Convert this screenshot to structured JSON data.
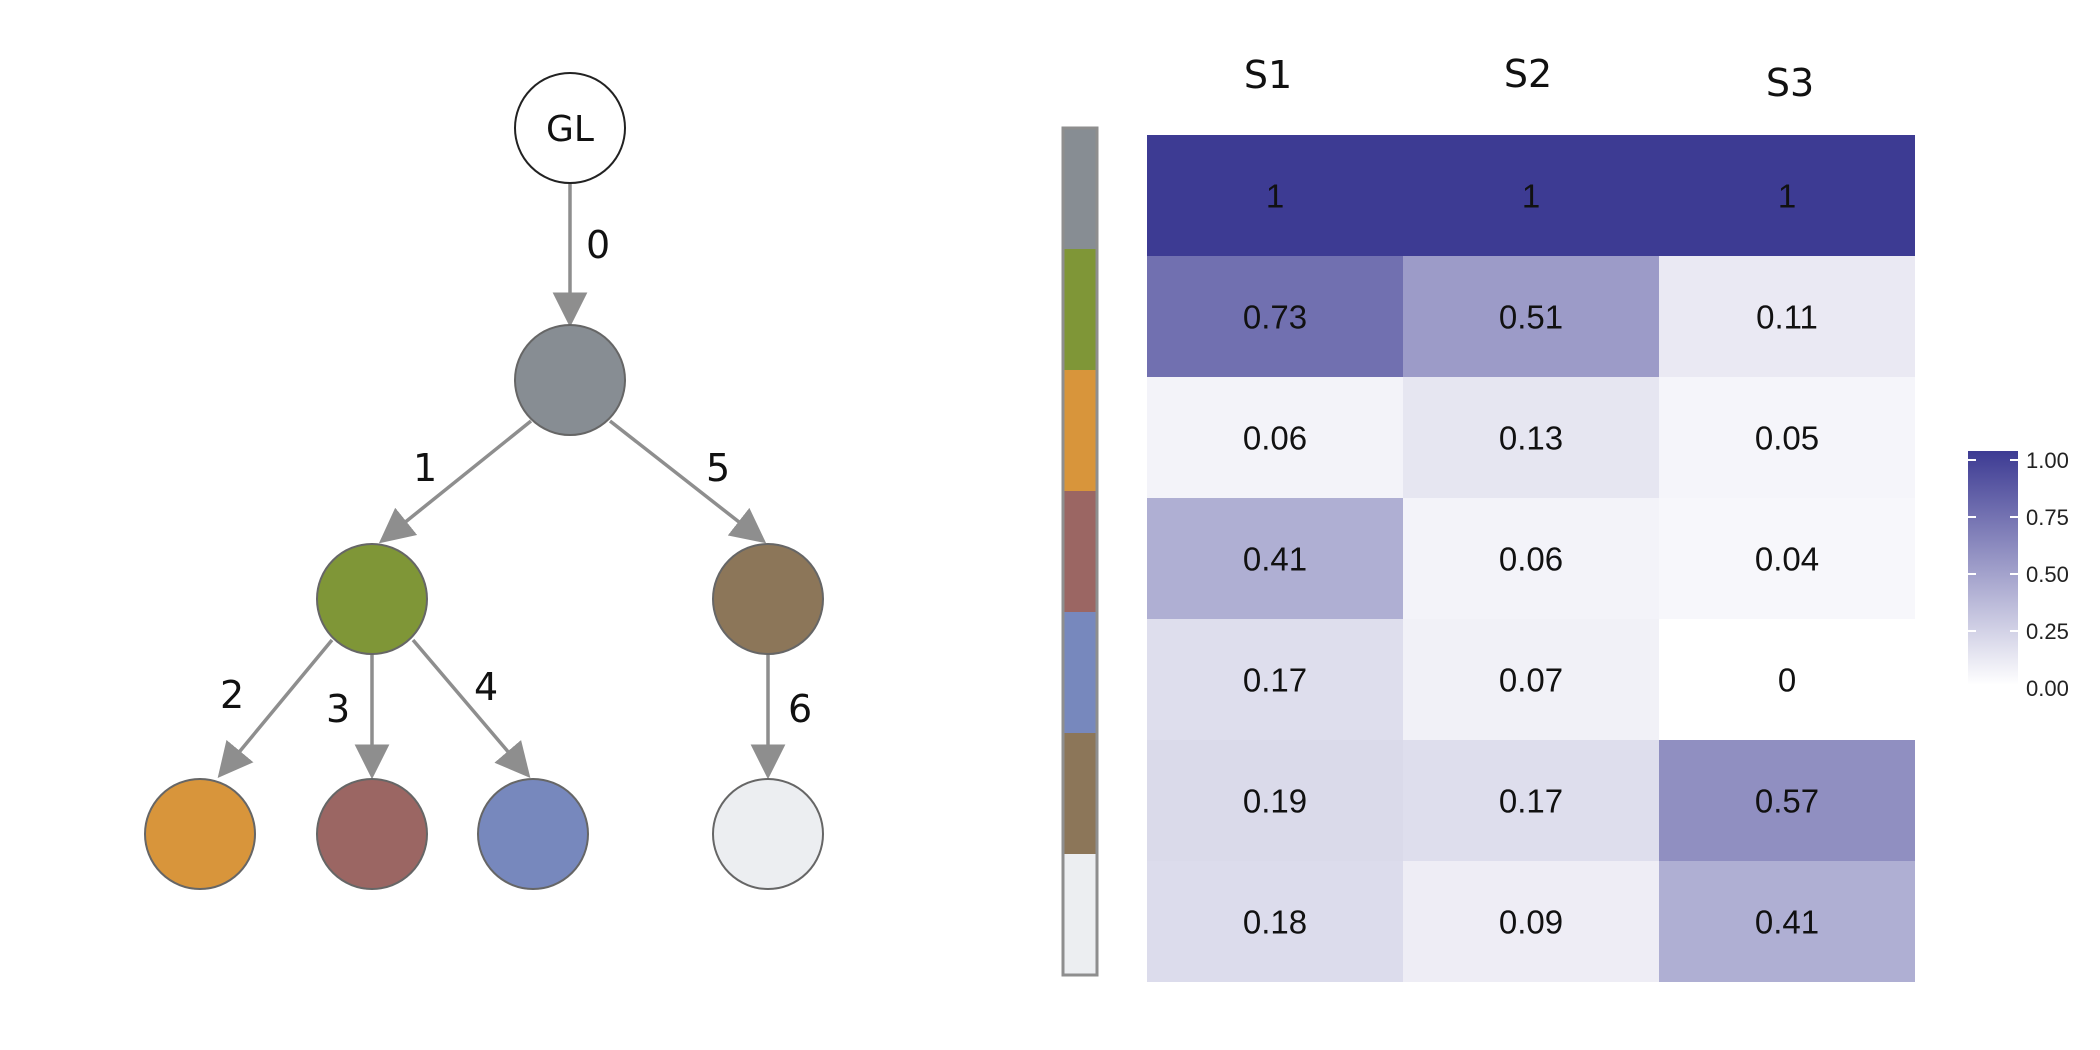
{
  "tree": {
    "root_label": "GL",
    "node_colors": {
      "root": "#ffffff",
      "n0": "#878d93",
      "n1": "#7f9637",
      "n2": "#d8953b",
      "n3": "#9b6663",
      "n4": "#7788bd",
      "n5": "#8c7659",
      "n6": "#eceef1"
    },
    "edge_labels": [
      "0",
      "1",
      "2",
      "3",
      "4",
      "5",
      "6"
    ]
  },
  "heatmap": {
    "columns": [
      "S1",
      "S2",
      "S3"
    ],
    "row_colors": [
      "#878d93",
      "#7f9637",
      "#d8953b",
      "#9b6663",
      "#7788bd",
      "#8c7659",
      "#eceef1"
    ],
    "values": [
      [
        "1",
        "1",
        "1"
      ],
      [
        "0.73",
        "0.51",
        "0.11"
      ],
      [
        "0.06",
        "0.13",
        "0.05"
      ],
      [
        "0.41",
        "0.06",
        "0.04"
      ],
      [
        "0.17",
        "0.07",
        "0"
      ],
      [
        "0.19",
        "0.17",
        "0.57"
      ],
      [
        "0.18",
        "0.09",
        "0.41"
      ]
    ],
    "scale_low_color": "#ffffff",
    "scale_high_color": "#3d3b93",
    "legend_ticks": [
      "1.00",
      "0.75",
      "0.50",
      "0.25",
      "0.00"
    ]
  }
}
